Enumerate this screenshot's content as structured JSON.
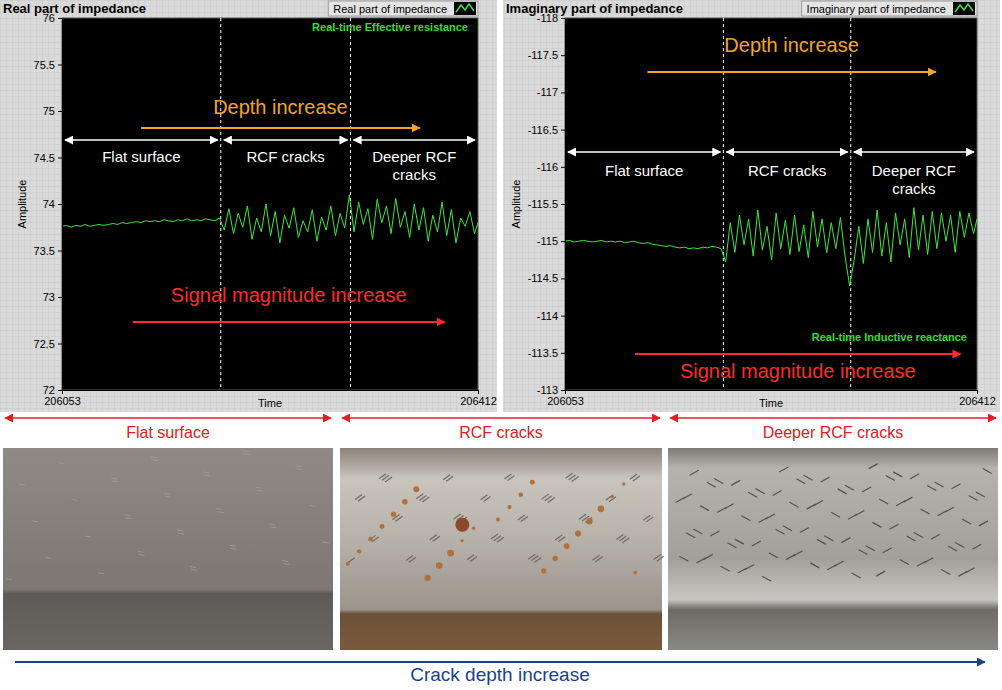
{
  "chart_data": [
    {
      "type": "line",
      "title": "Real part of impedance",
      "x_label": "Time",
      "y_label": "Amplitude",
      "legend": "top-right",
      "x": [
        206053,
        206057,
        206061,
        206065,
        206069,
        206073,
        206077,
        206081,
        206085,
        206089,
        206093,
        206097,
        206101,
        206105,
        206109,
        206113,
        206117,
        206121,
        206125,
        206129,
        206133,
        206137,
        206141,
        206145,
        206149,
        206153,
        206157,
        206161,
        206165,
        206169,
        206173,
        206177,
        206181,
        206185,
        206189,
        206193,
        206197,
        206201,
        206205,
        206209,
        206213,
        206217,
        206221,
        206225,
        206229,
        206233,
        206237,
        206241,
        206245,
        206249,
        206253,
        206257,
        206261,
        206265,
        206269,
        206273,
        206277,
        206281,
        206285,
        206289,
        206293,
        206297,
        206301,
        206305,
        206309,
        206313,
        206317,
        206321,
        206325,
        206329,
        206333,
        206337,
        206341,
        206345,
        206349,
        206353,
        206357,
        206361,
        206365,
        206369,
        206373,
        206377,
        206381,
        206385,
        206389,
        206393,
        206397,
        206401,
        206405,
        206409,
        206412
      ],
      "xlim": [
        206053,
        206412
      ],
      "xticks": [
        206053,
        206412
      ],
      "ylim": [
        72,
        76
      ],
      "yticks": [
        72,
        72.5,
        73,
        73.5,
        74,
        74.5,
        75,
        75.5,
        76
      ],
      "series": [
        {
          "name": "Real part of impedance",
          "color": "#3ee63e",
          "values": [
            73.76,
            73.77,
            73.75,
            73.77,
            73.76,
            73.78,
            73.76,
            73.77,
            73.78,
            73.77,
            73.78,
            73.79,
            73.78,
            73.8,
            73.79,
            73.8,
            73.81,
            73.8,
            73.82,
            73.81,
            73.82,
            73.81,
            73.83,
            73.82,
            73.81,
            73.83,
            73.82,
            73.84,
            73.82,
            73.83,
            73.82,
            73.84,
            73.83,
            73.82,
            73.85,
            73.72,
            73.95,
            73.68,
            73.9,
            73.75,
            73.98,
            73.62,
            73.85,
            73.7,
            74.0,
            73.66,
            73.92,
            73.58,
            73.88,
            73.74,
            73.96,
            73.64,
            73.82,
            73.7,
            73.94,
            73.6,
            73.86,
            73.72,
            73.98,
            73.66,
            73.9,
            73.74,
            74.1,
            73.7,
            74.02,
            73.78,
            73.95,
            73.62,
            74.05,
            73.8,
            73.98,
            73.68,
            74.06,
            73.75,
            73.92,
            73.64,
            74.0,
            73.72,
            73.96,
            73.6,
            73.88,
            73.7,
            74.02,
            73.66,
            73.94,
            73.58,
            73.85,
            73.76,
            73.92,
            73.68,
            73.8
          ]
        }
      ],
      "annotations": {
        "plot_label": "Real-time Effective resistance",
        "trend_top": "Depth increase",
        "trend_bottom": "Signal magnitude increase",
        "regions": [
          {
            "label": "Flat surface",
            "x": [
              206053,
              206190
            ]
          },
          {
            "label": "RCF cracks",
            "x": [
              206190,
              206302
            ]
          },
          {
            "label": "Deeper RCF cracks",
            "x": [
              206302,
              206412
            ]
          }
        ]
      }
    },
    {
      "type": "line",
      "title": "Imaginary part of impedance",
      "x_label": "Time",
      "y_label": "Amplitude",
      "legend": "top-right",
      "x": [
        206053,
        206057,
        206061,
        206065,
        206069,
        206073,
        206077,
        206081,
        206085,
        206089,
        206093,
        206097,
        206101,
        206105,
        206109,
        206113,
        206117,
        206121,
        206125,
        206129,
        206133,
        206137,
        206141,
        206145,
        206149,
        206153,
        206157,
        206161,
        206165,
        206169,
        206173,
        206177,
        206181,
        206185,
        206189,
        206193,
        206197,
        206201,
        206205,
        206209,
        206213,
        206217,
        206221,
        206225,
        206229,
        206233,
        206237,
        206241,
        206245,
        206249,
        206253,
        206257,
        206261,
        206265,
        206269,
        206273,
        206277,
        206281,
        206285,
        206289,
        206293,
        206297,
        206301,
        206305,
        206309,
        206313,
        206317,
        206321,
        206325,
        206329,
        206333,
        206337,
        206341,
        206345,
        206349,
        206353,
        206357,
        206361,
        206365,
        206369,
        206373,
        206377,
        206381,
        206385,
        206389,
        206393,
        206397,
        206401,
        206405,
        206409,
        206412
      ],
      "xlim": [
        206053,
        206412
      ],
      "xticks": [
        206053,
        206412
      ],
      "ylim": [
        -113,
        -118
      ],
      "yticks": [
        -118,
        -117.5,
        -117,
        -116.5,
        -116,
        -115.5,
        -115,
        -114.5,
        -114,
        -113.5,
        -113
      ],
      "series": [
        {
          "name": "Imaginary part of impedance",
          "color": "#3ee63e",
          "values": [
            -115.0,
            -115.01,
            -114.99,
            -115.0,
            -115.01,
            -115.0,
            -114.99,
            -115.0,
            -115.01,
            -114.99,
            -115.0,
            -114.99,
            -115.0,
            -114.98,
            -114.99,
            -115.0,
            -114.98,
            -114.97,
            -114.98,
            -114.96,
            -114.95,
            -114.94,
            -114.93,
            -114.94,
            -114.92,
            -114.91,
            -114.92,
            -114.9,
            -114.91,
            -114.9,
            -114.92,
            -114.91,
            -114.93,
            -114.92,
            -114.9,
            -114.72,
            -115.25,
            -114.85,
            -115.35,
            -114.95,
            -115.3,
            -114.8,
            -115.42,
            -114.88,
            -115.2,
            -114.75,
            -115.38,
            -114.9,
            -115.28,
            -114.82,
            -115.35,
            -114.86,
            -115.22,
            -114.78,
            -115.4,
            -114.92,
            -115.3,
            -114.84,
            -115.25,
            -114.9,
            -115.32,
            -114.8,
            -114.4,
            -114.75,
            -115.2,
            -114.7,
            -115.3,
            -114.85,
            -115.42,
            -114.8,
            -115.25,
            -114.72,
            -115.38,
            -114.95,
            -115.3,
            -114.78,
            -115.45,
            -114.88,
            -115.35,
            -114.82,
            -115.4,
            -114.9,
            -115.38,
            -115.0,
            -115.35,
            -114.85,
            -115.4,
            -115.05,
            -115.38,
            -115.1,
            -115.3
          ]
        }
      ],
      "annotations": {
        "plot_label": "Real-time Inductive reactance",
        "trend_top": "Depth increase",
        "trend_bottom": "Signal magnitude increase",
        "regions": [
          {
            "label": "Flat surface",
            "x": [
              206053,
              206191
            ]
          },
          {
            "label": "RCF cracks",
            "x": [
              206191,
              206302
            ]
          },
          {
            "label": "Deeper RCF cracks",
            "x": [
              206302,
              206412
            ]
          }
        ]
      }
    }
  ],
  "photo_panels": {
    "labels": [
      "Flat surface",
      "RCF cracks",
      "Deeper RCF cracks"
    ],
    "caption": "Crack depth increase"
  }
}
